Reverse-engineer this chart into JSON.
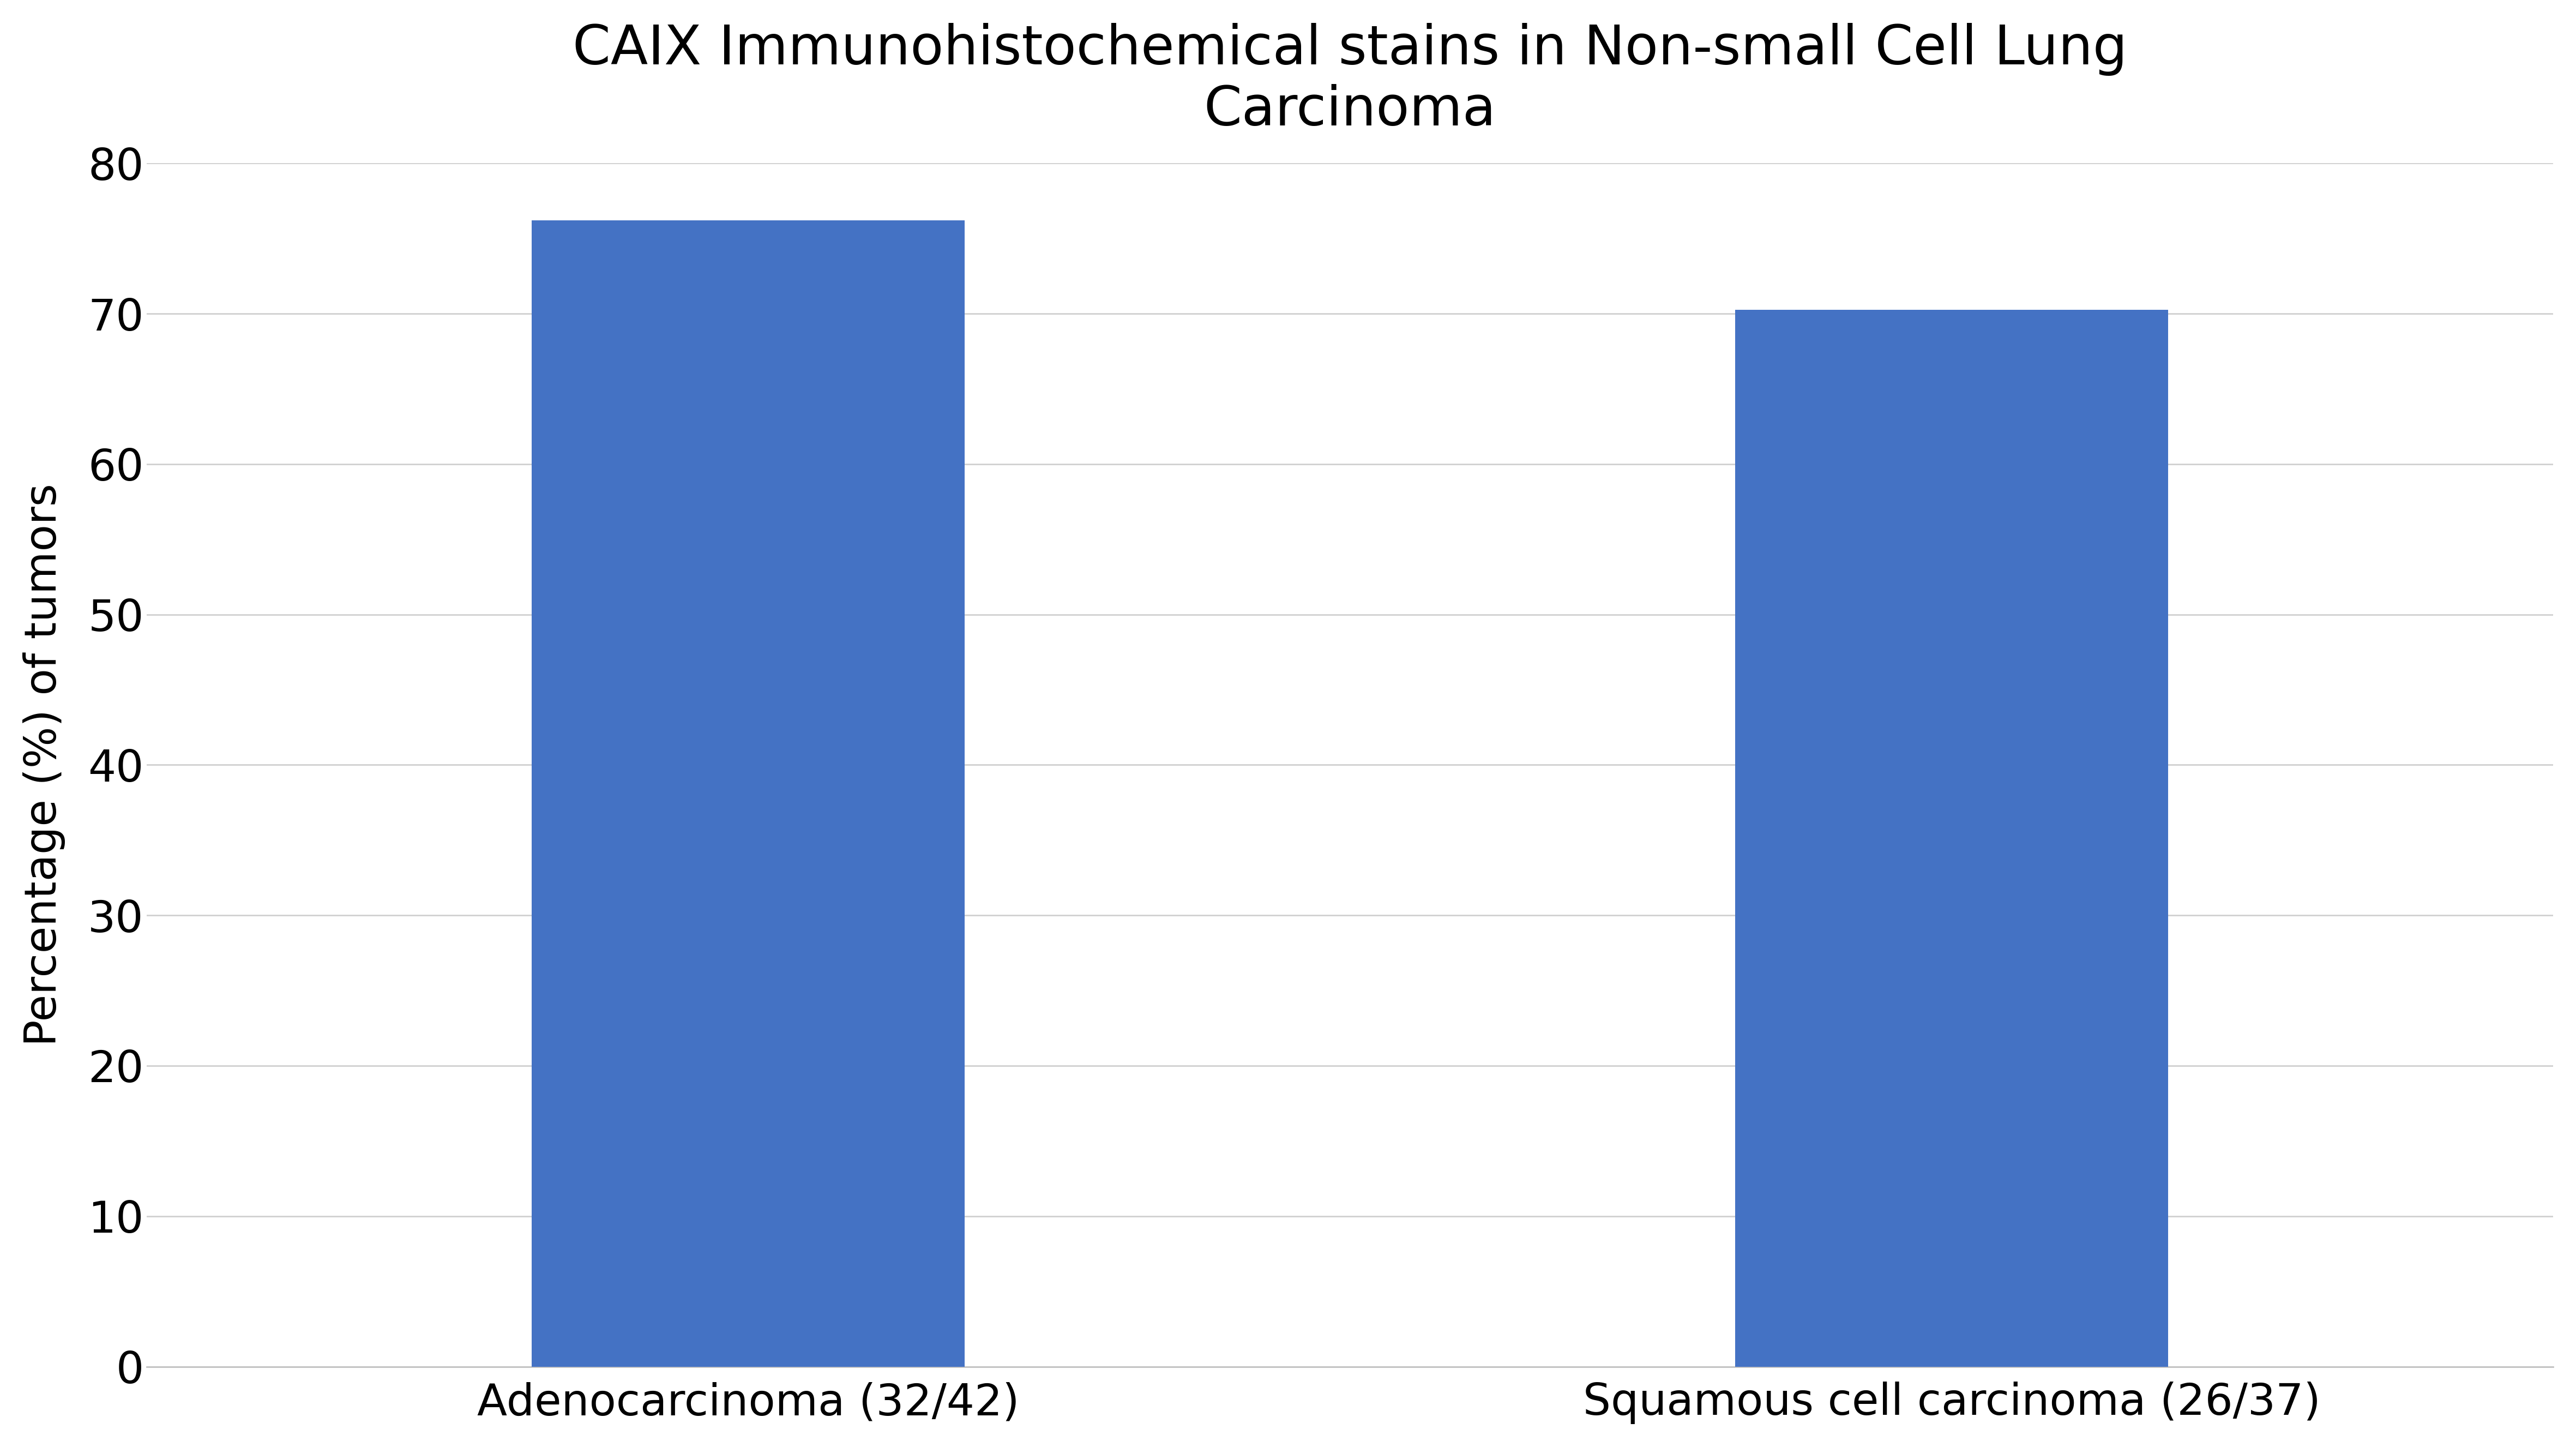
{
  "title": "CAIX Immunohistochemical stains in Non-small Cell Lung\nCarcinoma",
  "categories": [
    "Adenocarcinoma (32/42)",
    "Squamous cell carcinoma (26/37)"
  ],
  "values": [
    76.19,
    70.27
  ],
  "bar_color": "#4472C4",
  "ylabel": "Percentage (%) of tumors",
  "ylim": [
    0,
    80
  ],
  "yticks": [
    0,
    10,
    20,
    30,
    40,
    50,
    60,
    70,
    80
  ],
  "title_fontsize": 72,
  "axis_label_fontsize": 58,
  "tick_fontsize": 58,
  "bar_width": 0.18,
  "x_positions": [
    0.25,
    0.75
  ],
  "xlim": [
    0,
    1
  ],
  "background_color": "#ffffff",
  "grid_color": "#d0d0d0",
  "bottom_spine_color": "#c0c0c0"
}
